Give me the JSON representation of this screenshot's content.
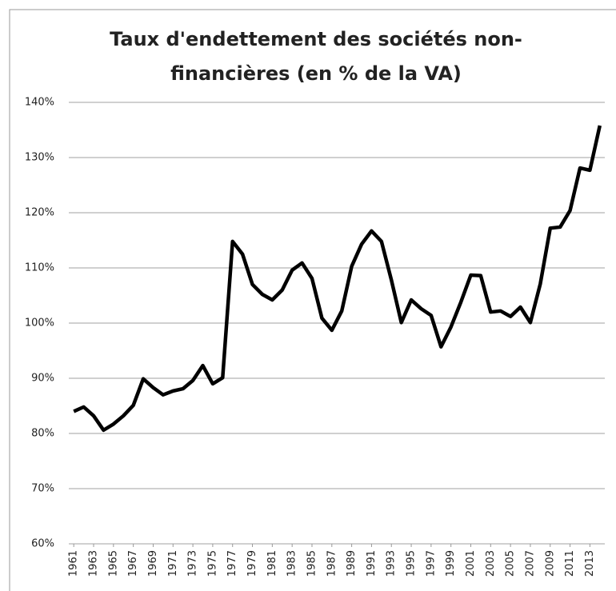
{
  "chart_data": {
    "type": "line",
    "title": "Taux d'endettement des sociétés non-financières (en % de la VA)",
    "x": [
      1961,
      1962,
      1963,
      1964,
      1965,
      1966,
      1967,
      1968,
      1969,
      1970,
      1971,
      1972,
      1973,
      1974,
      1975,
      1976,
      1977,
      1978,
      1979,
      1980,
      1981,
      1982,
      1983,
      1984,
      1985,
      1986,
      1987,
      1988,
      1989,
      1990,
      1991,
      1992,
      1993,
      1994,
      1995,
      1996,
      1997,
      1998,
      1999,
      2000,
      2001,
      2002,
      2003,
      2004,
      2005,
      2006,
      2007,
      2008,
      2009,
      2010,
      2011,
      2012,
      2013,
      2014
    ],
    "values": [
      84,
      84.8,
      83.2,
      80.6,
      81.7,
      83.2,
      85.1,
      89.9,
      88.3,
      87,
      87.7,
      88.1,
      89.6,
      92.3,
      89,
      90.1,
      114.8,
      112.5,
      107,
      105.2,
      104.2,
      106,
      109.6,
      110.9,
      108.1,
      100.9,
      98.7,
      102.2,
      110.3,
      114.3,
      116.7,
      114.8,
      107.8,
      100.1,
      104.2,
      102.6,
      101.4,
      95.7,
      99.3,
      103.8,
      108.7,
      108.6,
      102,
      102.2,
      101.2,
      102.9,
      100.1,
      107.1,
      117.2,
      117.4,
      120.4,
      128.1,
      127.7,
      135.8
    ],
    "color": "#000000",
    "xlim": [
      1960.5,
      2014.5
    ],
    "xticks": [
      1961,
      1963,
      1965,
      1967,
      1969,
      1971,
      1973,
      1975,
      1977,
      1979,
      1981,
      1983,
      1985,
      1987,
      1989,
      1991,
      1993,
      1995,
      1997,
      1999,
      2001,
      2003,
      2005,
      2007,
      2009,
      2011,
      2013
    ],
    "ylim": [
      60,
      140
    ],
    "yticks": [
      {
        "value": 60,
        "label": "60%"
      },
      {
        "value": 70,
        "label": "70%"
      },
      {
        "value": 80,
        "label": "80%"
      },
      {
        "value": 90,
        "label": "90%"
      },
      {
        "value": 100,
        "label": "100%"
      },
      {
        "value": 110,
        "label": "110%"
      },
      {
        "value": 120,
        "label": "120%"
      },
      {
        "value": 130,
        "label": "130%"
      },
      {
        "value": 140,
        "label": "140%"
      }
    ],
    "grid": true
  }
}
